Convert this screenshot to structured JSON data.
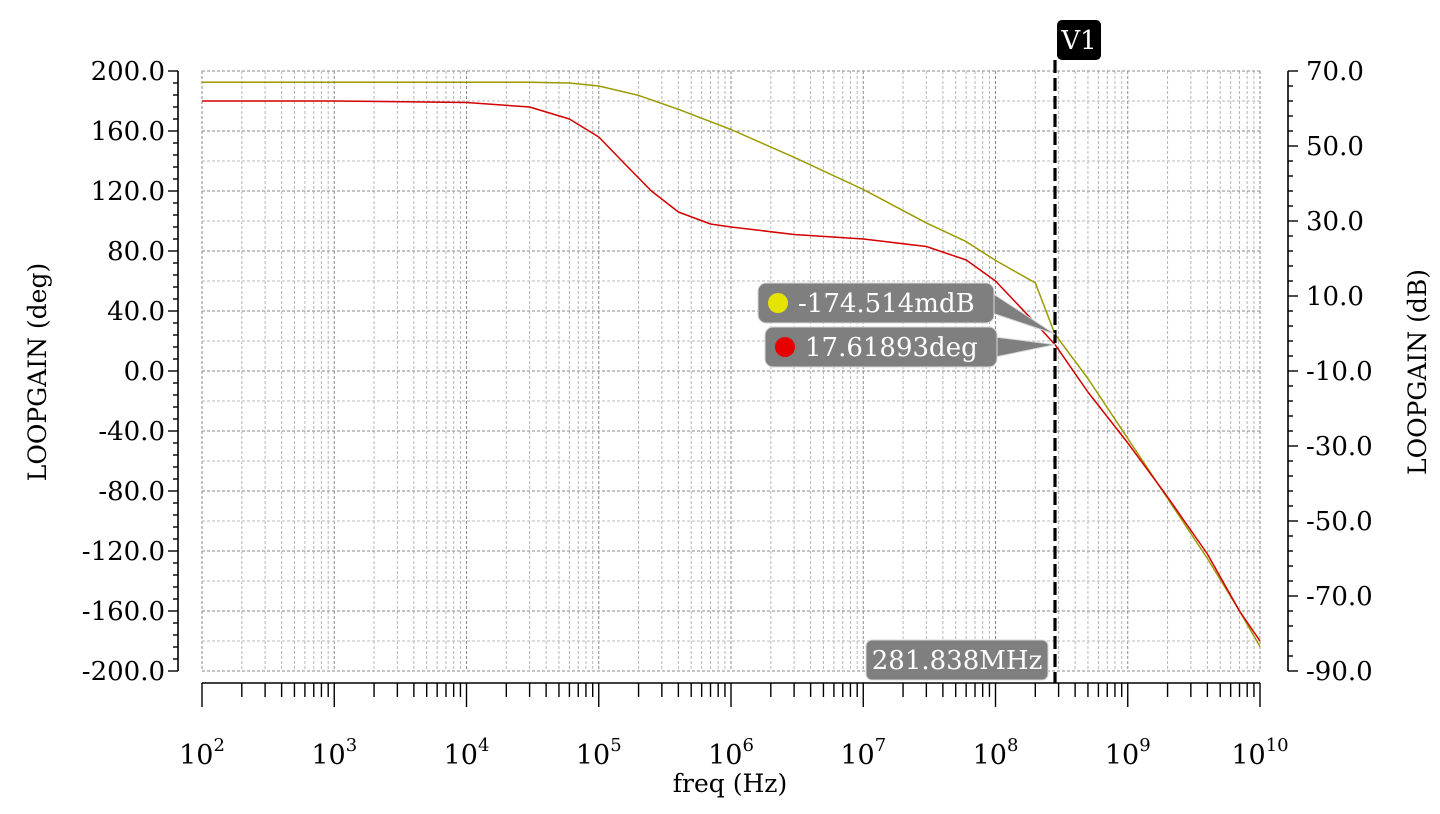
{
  "chart_data": {
    "type": "line",
    "xlabel": "freq (Hz)",
    "ylabel_left": "LOOPGAIN (deg)",
    "ylabel_right": "LOOPGAIN (dB)",
    "x_scale": "log",
    "xlim": [
      100,
      10000000000
    ],
    "ylim_left": [
      -200,
      200
    ],
    "ylim_right": [
      -90,
      70
    ],
    "x_ticks": [
      {
        "mantissa": "10",
        "exp": "2",
        "value": 100
      },
      {
        "mantissa": "10",
        "exp": "3",
        "value": 1000
      },
      {
        "mantissa": "10",
        "exp": "4",
        "value": 10000
      },
      {
        "mantissa": "10",
        "exp": "5",
        "value": 100000
      },
      {
        "mantissa": "10",
        "exp": "6",
        "value": 1000000
      },
      {
        "mantissa": "10",
        "exp": "7",
        "value": 10000000
      },
      {
        "mantissa": "10",
        "exp": "8",
        "value": 100000000
      },
      {
        "mantissa": "10",
        "exp": "9",
        "value": 1000000000
      },
      {
        "mantissa": "10",
        "exp": "10",
        "value": 10000000000
      }
    ],
    "y_ticks_left": [
      {
        "label": "200.0",
        "value": 200
      },
      {
        "label": "160.0",
        "value": 160
      },
      {
        "label": "120.0",
        "value": 120
      },
      {
        "label": "80.0",
        "value": 80
      },
      {
        "label": "40.0",
        "value": 40
      },
      {
        "label": "0.0",
        "value": 0
      },
      {
        "label": "-40.0",
        "value": -40
      },
      {
        "label": "-80.0",
        "value": -80
      },
      {
        "label": "-120.0",
        "value": -120
      },
      {
        "label": "-160.0",
        "value": -160
      },
      {
        "label": "-200.0",
        "value": -200
      }
    ],
    "y_ticks_right": [
      {
        "label": "70.0",
        "value": 70
      },
      {
        "label": "50.0",
        "value": 50
      },
      {
        "label": "30.0",
        "value": 30
      },
      {
        "label": "10.0",
        "value": 10
      },
      {
        "label": "-10.0",
        "value": -10
      },
      {
        "label": "-30.0",
        "value": -30
      },
      {
        "label": "-50.0",
        "value": -50
      },
      {
        "label": "-70.0",
        "value": -70
      },
      {
        "label": "-90.0",
        "value": -90
      }
    ],
    "grid": true,
    "series": [
      {
        "axis": "right",
        "unit": "dB",
        "color": "#9a9a00",
        "points": [
          [
            100,
            67.0
          ],
          [
            1000,
            67.0
          ],
          [
            10000,
            67.0
          ],
          [
            30000,
            67.0
          ],
          [
            60000,
            66.8
          ],
          [
            100000,
            66.0
          ],
          [
            200000,
            63.5
          ],
          [
            400000,
            59.8
          ],
          [
            1000000,
            54.4
          ],
          [
            3000000,
            47.0
          ],
          [
            10000000,
            38.4
          ],
          [
            30000000,
            29.5
          ],
          [
            60000000,
            24.5
          ],
          [
            100000000,
            19.5
          ],
          [
            200000000,
            13.5
          ],
          [
            281838000,
            -0.2
          ],
          [
            500000000,
            -12.0
          ],
          [
            1000000000,
            -28.0
          ],
          [
            2000000000,
            -44.0
          ],
          [
            4000000000,
            -60.0
          ],
          [
            7000000000,
            -74.0
          ],
          [
            10000000000,
            -83.5
          ]
        ]
      },
      {
        "axis": "left",
        "unit": "deg",
        "color": "#d40000",
        "points": [
          [
            100,
            180.0
          ],
          [
            1000,
            180.0
          ],
          [
            10000,
            179.0
          ],
          [
            30000,
            176.0
          ],
          [
            60000,
            168.0
          ],
          [
            100000,
            156.0
          ],
          [
            150000,
            140.0
          ],
          [
            250000,
            120.0
          ],
          [
            400000,
            106.0
          ],
          [
            700000,
            98.0
          ],
          [
            1000000,
            96.0
          ],
          [
            3000000,
            91.0
          ],
          [
            10000000,
            88.0
          ],
          [
            30000000,
            83.0
          ],
          [
            60000000,
            74.0
          ],
          [
            100000000,
            60.0
          ],
          [
            200000000,
            32.0
          ],
          [
            281838000,
            17.61893
          ],
          [
            500000000,
            -14.0
          ],
          [
            1000000000,
            -48.0
          ],
          [
            2000000000,
            -84.0
          ],
          [
            4000000000,
            -122.0
          ],
          [
            7000000000,
            -160.0
          ],
          [
            10000000000,
            -180.0
          ]
        ]
      }
    ],
    "cursor": {
      "name": "V1",
      "value_label": "281.838MHz",
      "x": 281838000
    },
    "markers": [
      {
        "text": "-174.514mdB",
        "dot_color": "#e4e400",
        "series_index": 0,
        "y": -0.174514
      },
      {
        "text": "17.61893deg",
        "dot_color": "#e60000",
        "series_index": 1,
        "y": 17.61893
      }
    ]
  }
}
